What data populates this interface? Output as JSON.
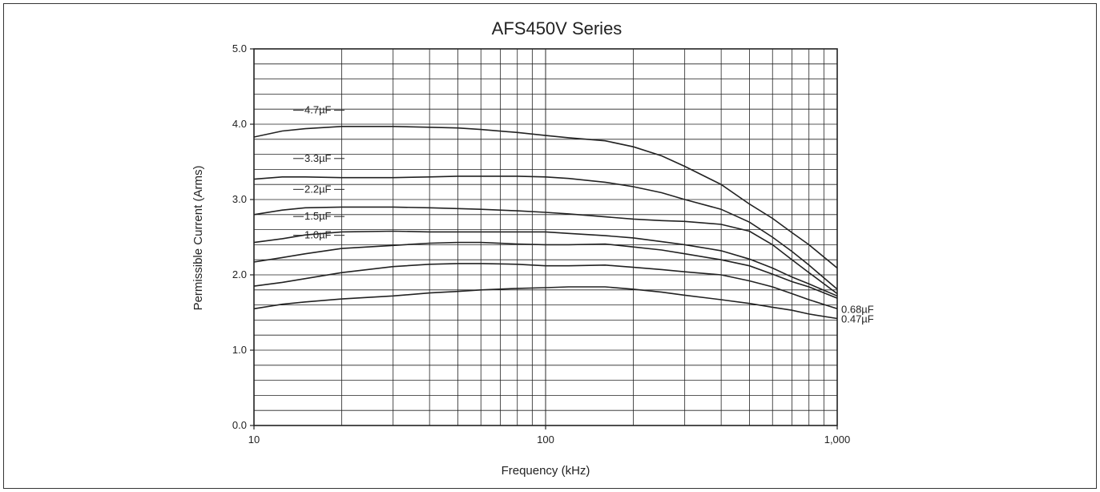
{
  "chart_data": {
    "type": "line",
    "title": "AFS450V Series",
    "xlabel": "Frequency (kHz)",
    "ylabel": "Permissible Current (Arms)",
    "x_scale": "log",
    "xlim": [
      10,
      1000
    ],
    "ylim": [
      0,
      5
    ],
    "x_tick_values": [
      10,
      100,
      1000
    ],
    "x_tick_labels": [
      "10",
      "100",
      "1,000"
    ],
    "y_tick_values": [
      0,
      1,
      2,
      3,
      4,
      5
    ],
    "y_tick_labels": [
      "0.0",
      "1.0",
      "2.0",
      "3.0",
      "4.0",
      "5.0"
    ],
    "grid": true,
    "series": [
      {
        "name": "4.7µF",
        "x": [
          10,
          12.5,
          15,
          20,
          30,
          40,
          50,
          60,
          80,
          100,
          120,
          160,
          200,
          250,
          300,
          400,
          500,
          600,
          700,
          800,
          1000
        ],
        "y": [
          3.83,
          3.91,
          3.94,
          3.97,
          3.97,
          3.96,
          3.95,
          3.93,
          3.89,
          3.85,
          3.82,
          3.78,
          3.7,
          3.58,
          3.44,
          3.2,
          2.94,
          2.75,
          2.56,
          2.4,
          2.09
        ]
      },
      {
        "name": "3.3µF",
        "x": [
          10,
          12.5,
          15,
          20,
          30,
          40,
          50,
          60,
          80,
          100,
          120,
          160,
          200,
          250,
          300,
          400,
          500,
          600,
          700,
          800,
          1000
        ],
        "y": [
          3.27,
          3.3,
          3.3,
          3.29,
          3.29,
          3.3,
          3.31,
          3.31,
          3.31,
          3.3,
          3.28,
          3.23,
          3.17,
          3.09,
          3.0,
          2.87,
          2.7,
          2.5,
          2.31,
          2.13,
          1.81
        ]
      },
      {
        "name": "2.2µF",
        "x": [
          10,
          12.5,
          15,
          20,
          30,
          40,
          50,
          60,
          80,
          100,
          120,
          160,
          200,
          250,
          300,
          400,
          500,
          600,
          700,
          800,
          1000
        ],
        "y": [
          2.8,
          2.86,
          2.89,
          2.9,
          2.9,
          2.89,
          2.88,
          2.87,
          2.85,
          2.83,
          2.81,
          2.77,
          2.74,
          2.72,
          2.71,
          2.67,
          2.58,
          2.4,
          2.2,
          2.03,
          1.75
        ]
      },
      {
        "name": "1.5µF",
        "x": [
          10,
          12.5,
          15,
          20,
          30,
          40,
          50,
          60,
          80,
          100,
          120,
          160,
          200,
          250,
          300,
          400,
          500,
          600,
          700,
          800,
          1000
        ],
        "y": [
          2.43,
          2.48,
          2.53,
          2.57,
          2.58,
          2.57,
          2.57,
          2.57,
          2.57,
          2.57,
          2.55,
          2.52,
          2.49,
          2.44,
          2.4,
          2.32,
          2.21,
          2.09,
          1.97,
          1.88,
          1.72
        ]
      },
      {
        "name": "1.0µF",
        "x": [
          10,
          12.5,
          15,
          20,
          30,
          40,
          50,
          60,
          80,
          100,
          120,
          160,
          200,
          250,
          300,
          400,
          500,
          600,
          700,
          800,
          1000
        ],
        "y": [
          2.17,
          2.23,
          2.28,
          2.35,
          2.39,
          2.42,
          2.43,
          2.43,
          2.41,
          2.4,
          2.4,
          2.41,
          2.37,
          2.33,
          2.28,
          2.2,
          2.12,
          2.01,
          1.91,
          1.84,
          1.69
        ]
      },
      {
        "name": "0.68µF",
        "x": [
          10,
          12.5,
          15,
          20,
          30,
          40,
          50,
          60,
          80,
          100,
          120,
          160,
          200,
          250,
          300,
          400,
          500,
          600,
          700,
          800,
          1000
        ],
        "y": [
          1.85,
          1.9,
          1.95,
          2.03,
          2.11,
          2.14,
          2.15,
          2.15,
          2.14,
          2.12,
          2.12,
          2.13,
          2.1,
          2.07,
          2.04,
          2.0,
          1.92,
          1.84,
          1.75,
          1.67,
          1.55
        ]
      },
      {
        "name": "0.47µF",
        "x": [
          10,
          12.5,
          15,
          20,
          30,
          40,
          50,
          60,
          80,
          100,
          120,
          160,
          200,
          250,
          300,
          400,
          500,
          600,
          700,
          800,
          1000
        ],
        "y": [
          1.55,
          1.61,
          1.64,
          1.68,
          1.72,
          1.76,
          1.78,
          1.8,
          1.82,
          1.83,
          1.84,
          1.84,
          1.81,
          1.77,
          1.73,
          1.67,
          1.62,
          1.57,
          1.53,
          1.48,
          1.42
        ]
      }
    ]
  }
}
